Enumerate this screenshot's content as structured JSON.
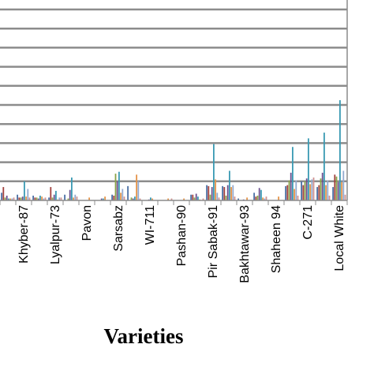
{
  "chart_data": {
    "type": "bar",
    "title": "",
    "xlabel": "Varieties",
    "ylabel": "",
    "grid": true,
    "ylim": [
      0,
      20
    ],
    "categories": [
      "",
      "Khyber-87",
      "",
      "Lyalpur-73",
      "",
      "Pavon",
      "",
      "Sarsabz",
      "",
      "WI-711",
      "",
      "Pashan-90",
      "",
      "Pir Sabak-91",
      "",
      "Bakhtawar-93",
      "",
      "Shaheen 94",
      "",
      "C-271",
      "",
      "Local White"
    ],
    "series": [
      {
        "color": "#4a6fa5",
        "values": [
          0.8,
          0.6,
          0.5,
          0.3,
          0.6,
          0.0,
          0.0,
          0.6,
          1.5,
          0.0,
          0.0,
          0.0,
          0.6,
          1.6,
          1.5,
          0.2,
          0.8,
          0.0,
          1.5,
          2.0,
          1.4,
          1.4
        ]
      },
      {
        "color": "#a0403d",
        "values": [
          1.4,
          0.3,
          0.3,
          1.4,
          0.0,
          0.0,
          0.0,
          0.5,
          0.0,
          0.0,
          0.0,
          0.0,
          0.6,
          1.5,
          1.4,
          0.0,
          0.4,
          0.0,
          1.6,
          1.6,
          1.6,
          2.7
        ]
      },
      {
        "color": "#8aa349",
        "values": [
          0.3,
          0.3,
          0.3,
          0.3,
          0.2,
          0.0,
          0.0,
          2.8,
          0.3,
          0.0,
          0.0,
          0.0,
          0.3,
          0.6,
          0.5,
          0.0,
          0.5,
          0.0,
          2.1,
          2.0,
          2.3,
          2.5
        ]
      },
      {
        "color": "#6a4f8f",
        "values": [
          0.5,
          0.4,
          0.2,
          0.6,
          1.1,
          0.0,
          0.2,
          2.0,
          0.2,
          0.1,
          0.0,
          0.0,
          0.7,
          1.4,
          1.6,
          0.1,
          1.3,
          0.0,
          2.9,
          2.3,
          2.9,
          1.9
        ]
      },
      {
        "color": "#3a9ab3",
        "values": [
          0.2,
          2.0,
          0.5,
          1.0,
          2.4,
          0.0,
          0.2,
          3.0,
          0.4,
          0.3,
          0.0,
          0.0,
          0.4,
          5.9,
          3.1,
          0.0,
          1.1,
          0.0,
          5.6,
          6.5,
          7.1,
          10.5
        ]
      },
      {
        "color": "#e4944a",
        "values": [
          0.2,
          0.4,
          0.4,
          0.1,
          0.3,
          0.3,
          0.4,
          0.8,
          2.7,
          0.2,
          0.2,
          0.2,
          0.1,
          2.2,
          1.4,
          0.3,
          0.3,
          0.4,
          1.2,
          1.7,
          1.6,
          1.9
        ]
      },
      {
        "color": "#93a9cf",
        "values": [
          0.2,
          1.2,
          0.2,
          0.3,
          0.6,
          0.0,
          0.0,
          1.2,
          2.0,
          0.0,
          0.0,
          0.0,
          0.0,
          0.8,
          1.6,
          0.0,
          0.2,
          0.0,
          2.1,
          2.2,
          2.1,
          3.1
        ]
      },
      {
        "color": "#d09392",
        "values": [
          0.3,
          0.3,
          0.3,
          0.3,
          0.4,
          0.0,
          0.0,
          0.4,
          0.2,
          0.0,
          0.2,
          0.0,
          0.2,
          0.3,
          0.4,
          0.0,
          0.4,
          0.0,
          0.5,
          2.4,
          0.5,
          0.6
        ]
      }
    ]
  }
}
